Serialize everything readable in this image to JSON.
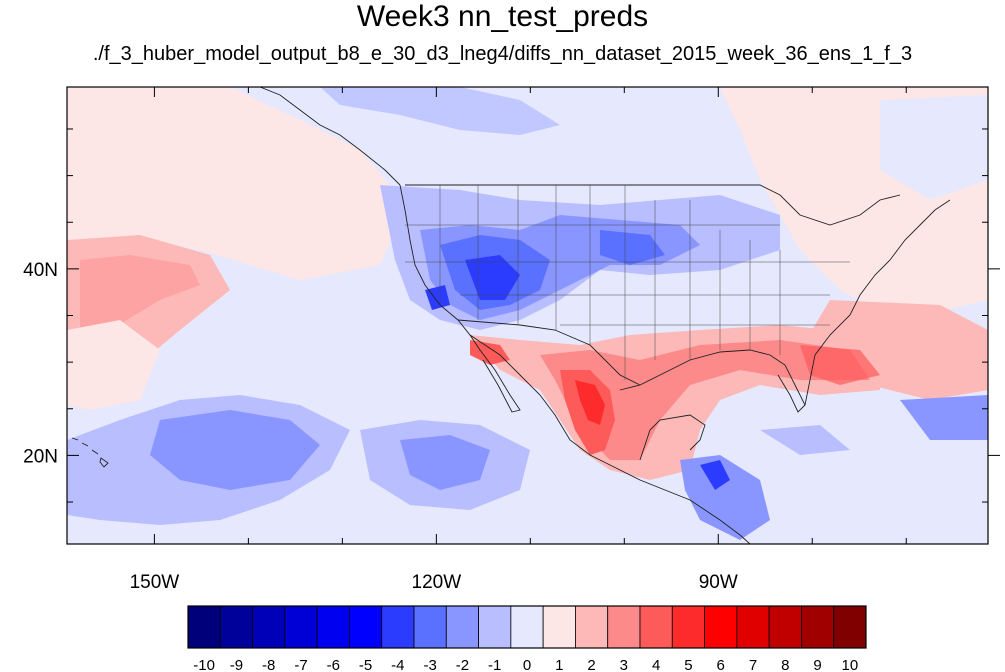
{
  "title": "Week3 nn_test_preds",
  "subtitle": "./f_3_huber_model_output_b8_e_30_d3_lneg4/diffs_nn_dataset_2015_week_36_ens_1_f_3",
  "map": {
    "projection": "cylindrical equidistant",
    "lon_range": [
      -159.3,
      -61.3
    ],
    "lat_range": [
      10.5,
      59.5
    ],
    "lon_ticks": [
      {
        "value": -150,
        "label": "150W"
      },
      {
        "value": -120,
        "label": "120W"
      },
      {
        "value": -90,
        "label": "90W"
      }
    ],
    "lat_ticks": [
      {
        "value": 40,
        "label": "40N"
      },
      {
        "value": 20,
        "label": "20N"
      }
    ],
    "background_color": "#e6e8fd"
  },
  "colorbar": {
    "levels": [
      "-10",
      "-9",
      "-8",
      "-7",
      "-6",
      "-5",
      "-4",
      "-3",
      "-2",
      "-1",
      "0",
      "1",
      "2",
      "3",
      "4",
      "5",
      "6",
      "7",
      "8",
      "9",
      "10"
    ],
    "colors": [
      "#00007a",
      "#00009a",
      "#0000b8",
      "#0000d6",
      "#0000f0",
      "#0000ff",
      "#2b3cff",
      "#5a70ff",
      "#8a96ff",
      "#b8beff",
      "#e6e8fd",
      "#fde6e6",
      "#fdb8b8",
      "#fd8a8a",
      "#fd5a5a",
      "#fd2b2b",
      "#ff0000",
      "#e00000",
      "#c00000",
      "#a00000",
      "#800000"
    ]
  }
}
